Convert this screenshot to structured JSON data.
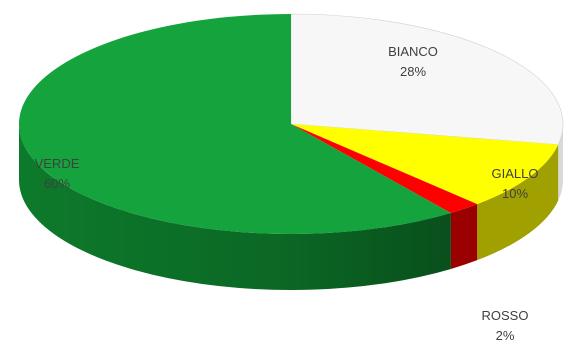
{
  "chart_data": {
    "type": "pie",
    "style": "3d",
    "slices": [
      {
        "label": "BIANCO",
        "value": 28,
        "percent_label": "28%",
        "color": "#f7f7f7",
        "side_color": "#d9d9d9"
      },
      {
        "label": "GIALLO",
        "value": 10,
        "percent_label": "10%",
        "color": "#ffff00",
        "side_color": "#a0a000"
      },
      {
        "label": "ROSSO",
        "value": 2,
        "percent_label": "2%",
        "color": "#ff0000",
        "side_color": "#9b0000"
      },
      {
        "label": "VERDE",
        "value": 60,
        "percent_label": "60%",
        "color": "#14a33c",
        "side_color": "#0d7a2b"
      }
    ],
    "legend": "none"
  }
}
